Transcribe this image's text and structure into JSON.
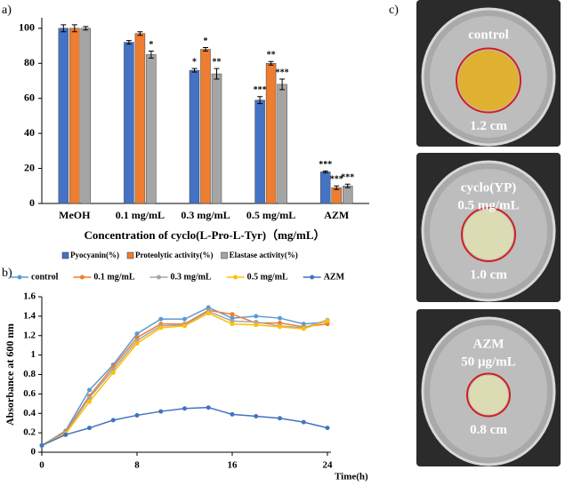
{
  "chart_data": [
    {
      "type": "bar",
      "panel": "a)",
      "x_label": "Concentration of cyclo(L-Pro-L-Tyr)（mg/mL）",
      "categories": [
        "MeOH",
        "0.1 mg/mL",
        "0.3 mg/mL",
        "0.5 mg/mL",
        "AZM"
      ],
      "ylim": [
        0,
        106
      ],
      "yticks": [
        0,
        20,
        40,
        60,
        80,
        100
      ],
      "series": [
        {
          "name": "Pyocyanin(%)",
          "color": "#4472c4",
          "values": [
            100,
            92,
            76,
            59,
            18
          ],
          "errors": [
            2,
            1,
            1,
            2,
            0.5
          ],
          "significance": [
            null,
            null,
            "*",
            "***",
            "***"
          ]
        },
        {
          "name": "Proteolytic activity(%)",
          "color": "#ed7d31",
          "values": [
            100,
            97,
            88,
            80,
            9
          ],
          "errors": [
            2,
            1,
            1,
            1,
            1
          ],
          "significance": [
            null,
            null,
            "*",
            "**",
            "***"
          ]
        },
        {
          "name": "Elastase activity(%)",
          "color": "#a5a5a5",
          "values": [
            100,
            85,
            74,
            68,
            10
          ],
          "errors": [
            1,
            2,
            3,
            3,
            1
          ],
          "significance": [
            null,
            "*",
            "**",
            "***",
            "***"
          ]
        }
      ]
    },
    {
      "type": "line",
      "panel": "b)",
      "x_label": "Time(h)",
      "y_label": "Absorbance at 600 nm",
      "x": [
        0,
        2,
        4,
        6,
        8,
        10,
        12,
        14,
        16,
        18,
        20,
        22,
        24
      ],
      "xlim": [
        0,
        24
      ],
      "xticks": [
        0,
        8,
        16,
        24
      ],
      "ylim": [
        0,
        1.6
      ],
      "yticks": [
        0,
        0.2,
        0.4,
        0.6,
        0.8,
        1,
        1.2,
        1.4,
        1.6
      ],
      "series": [
        {
          "name": "control",
          "color": "#5b9bd5",
          "values": [
            0.07,
            0.22,
            0.64,
            0.9,
            1.22,
            1.37,
            1.37,
            1.49,
            1.38,
            1.4,
            1.38,
            1.32,
            1.34
          ]
        },
        {
          "name": "0.1 mg/mL",
          "color": "#ed7d31",
          "values": [
            0.07,
            0.21,
            0.58,
            0.88,
            1.18,
            1.32,
            1.32,
            1.46,
            1.42,
            1.33,
            1.33,
            1.29,
            1.32
          ]
        },
        {
          "name": "0.3 mg/mL",
          "color": "#a5a5a5",
          "values": [
            0.07,
            0.2,
            0.56,
            0.85,
            1.15,
            1.3,
            1.31,
            1.45,
            1.35,
            1.34,
            1.3,
            1.28,
            1.36
          ]
        },
        {
          "name": "0.5 mg/mL",
          "color": "#ffc000",
          "values": [
            0.07,
            0.19,
            0.52,
            0.82,
            1.12,
            1.28,
            1.3,
            1.43,
            1.32,
            1.31,
            1.29,
            1.27,
            1.35
          ]
        },
        {
          "name": "AZM",
          "color": "#4472c4",
          "values": [
            0.07,
            0.18,
            0.25,
            0.33,
            0.38,
            0.42,
            0.45,
            0.46,
            0.39,
            0.37,
            0.35,
            0.31,
            0.25
          ]
        }
      ]
    }
  ],
  "plates": {
    "panel": "c)",
    "items": [
      {
        "lines": [
          "control",
          "1.2 cm"
        ]
      },
      {
        "lines": [
          "cyclo(YP)",
          "0.5 mg/mL",
          "1.0 cm"
        ]
      },
      {
        "lines": [
          "AZM",
          "50 μg/mL",
          "0.8 cm"
        ]
      }
    ]
  }
}
